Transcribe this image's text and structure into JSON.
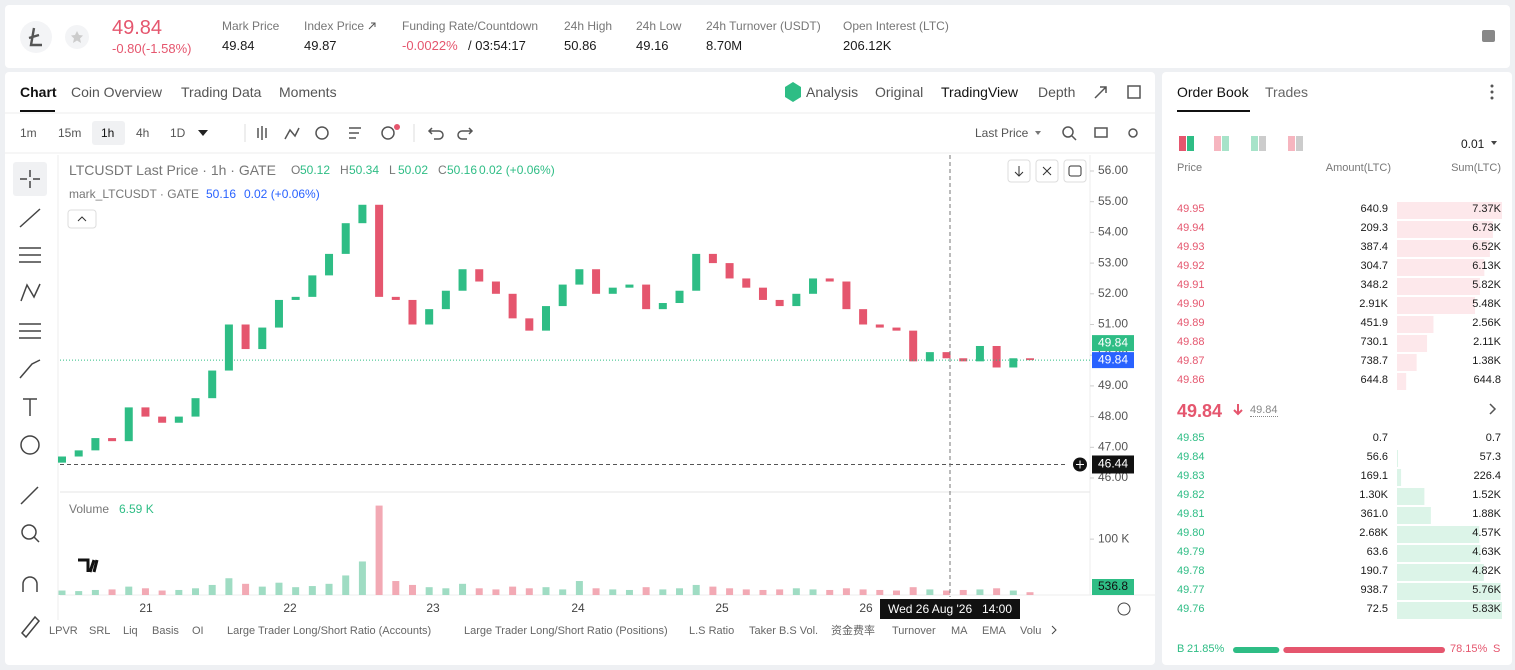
{
  "header": {
    "price": "49.84",
    "change": "-0.80(-1.58%)",
    "stats": [
      {
        "label": "Mark Price",
        "value": "49.84"
      },
      {
        "label": "Index Price",
        "value": "49.87"
      },
      {
        "label": "Funding Rate/Countdown",
        "value": "-0.0022%",
        "value2": "/ 03:54:17"
      },
      {
        "label": "24h High",
        "value": "50.86"
      },
      {
        "label": "24h Low",
        "value": "49.16"
      },
      {
        "label": "24h Turnover (USDT)",
        "value": "8.70M"
      },
      {
        "label": "Open Interest (LTC)",
        "value": "206.12K"
      }
    ]
  },
  "tabs": [
    "Chart",
    "Coin Overview",
    "Trading Data",
    "Moments"
  ],
  "view_tabs": [
    "Analysis",
    "Original",
    "TradingView",
    "Depth"
  ],
  "intervals": [
    "1m",
    "15m",
    "1h",
    "4h",
    "1D"
  ],
  "price_source": "Last Price",
  "chart": {
    "type": "candlestick",
    "legend": {
      "title": "LTCUSDT Last Price · 1h · GATE",
      "ohlc": [
        {
          "k": "O",
          "v": "50.12"
        },
        {
          "k": "H",
          "v": "50.34"
        },
        {
          "k": "L",
          "v": "50.02"
        },
        {
          "k": "C",
          "v": "50.16"
        }
      ],
      "change": "0.02 (+0.06%)",
      "mark_title": "mark_LTCUSDT · GATE",
      "mark_value": "50.16",
      "mark_change": "0.02 (+0.06%)"
    },
    "open": 46.5,
    "closes": [
      46.7,
      46.9,
      47.3,
      47.2,
      48.3,
      48.0,
      47.8,
      48.0,
      48.6,
      49.5,
      51.0,
      50.2,
      50.9,
      51.8,
      51.9,
      52.6,
      53.3,
      54.3,
      54.9,
      51.9,
      51.8,
      51.0,
      51.5,
      52.1,
      52.8,
      52.4,
      52.0,
      51.2,
      50.8,
      51.6,
      52.3,
      52.8,
      52.0,
      52.2,
      52.3,
      51.5,
      51.7,
      52.1,
      53.3,
      53.0,
      52.5,
      52.2,
      51.8,
      51.6,
      52.0,
      52.5,
      52.4,
      51.5,
      51.0,
      50.9,
      50.8,
      49.8,
      50.1,
      49.9,
      49.8,
      50.3,
      49.6,
      49.9,
      49.84
    ],
    "volumes": [
      8,
      7,
      9,
      10,
      15,
      12,
      8,
      9,
      12,
      18,
      30,
      20,
      15,
      22,
      14,
      16,
      20,
      35,
      60,
      160,
      25,
      18,
      14,
      12,
      20,
      12,
      10,
      15,
      12,
      14,
      10,
      25,
      12,
      10,
      9,
      14,
      10,
      12,
      18,
      15,
      12,
      10,
      9,
      10,
      12,
      10,
      9,
      12,
      10,
      9,
      8,
      14,
      10,
      8,
      9,
      10,
      12,
      8,
      5
    ],
    "ylim": [
      46,
      56
    ],
    "yticks": [
      {
        "value": 46,
        "label": "46.00"
      },
      {
        "value": 47,
        "label": "47.00"
      },
      {
        "value": 48,
        "label": "48.00"
      },
      {
        "value": 49,
        "label": "49.00"
      },
      {
        "value": 50,
        "label": "50.00"
      },
      {
        "value": 51,
        "label": "51.00"
      },
      {
        "value": 52,
        "label": "52.00"
      },
      {
        "value": 53,
        "label": "53.00"
      },
      {
        "value": 54,
        "label": "54.00"
      },
      {
        "value": 55,
        "label": "55.00"
      },
      {
        "value": 56,
        "label": "56.00"
      }
    ],
    "vol_ylim": [
      0,
      170
    ],
    "vol_yticks": [
      {
        "value": 100,
        "label": "100 K"
      }
    ],
    "x_labels": [
      "21",
      "22",
      "23",
      "24",
      "25",
      "26"
    ],
    "last_price_tag": "49.84",
    "mark_price_tag": "49.84",
    "crosshair_price": 46.44,
    "crosshair_date": "Wed 26 Aug '26",
    "crosshair_time": "14:00",
    "volume_title": "Volume",
    "volume_value": "6.59 K",
    "volume_tag": "536.8"
  },
  "indicators": [
    "LPVR",
    "SRL",
    "Liq",
    "Basis",
    "OI",
    "Large Trader Long/Short Ratio (Accounts)",
    "Large Trader Long/Short Ratio (Positions)",
    "L.S Ratio",
    "Taker B.S Vol.",
    "资金费率",
    "Turnover",
    "MA",
    "EMA",
    "Volu"
  ],
  "order_book": {
    "tabs": [
      "Order Book",
      "Trades"
    ],
    "precision": "0.01",
    "columns": [
      "Price",
      "Amount(LTC)",
      "Sum(LTC)"
    ],
    "asks": [
      {
        "price": "49.95",
        "amount": "640.9",
        "sum": {
          "value": 7370,
          "label": "7.37K"
        }
      },
      {
        "price": "49.94",
        "amount": "209.3",
        "sum": {
          "value": 6730,
          "label": "6.73K"
        }
      },
      {
        "price": "49.93",
        "amount": "387.4",
        "sum": {
          "value": 6520,
          "label": "6.52K"
        }
      },
      {
        "price": "49.92",
        "amount": "304.7",
        "sum": {
          "value": 6130,
          "label": "6.13K"
        }
      },
      {
        "price": "49.91",
        "amount": "348.2",
        "sum": {
          "value": 5820,
          "label": "5.82K"
        }
      },
      {
        "price": "49.90",
        "amount": "2.91K",
        "sum": {
          "value": 5480,
          "label": "5.48K"
        }
      },
      {
        "price": "49.89",
        "amount": "451.9",
        "sum": {
          "value": 2560,
          "label": "2.56K"
        }
      },
      {
        "price": "49.88",
        "amount": "730.1",
        "sum": {
          "value": 2110,
          "label": "2.11K"
        }
      },
      {
        "price": "49.87",
        "amount": "738.7",
        "sum": {
          "value": 1380,
          "label": "1.38K"
        }
      },
      {
        "price": "49.86",
        "amount": "644.8",
        "sum": 644.8
      }
    ],
    "mid_price": "49.84",
    "mid_mark": "49.84",
    "bids": [
      {
        "price": "49.85",
        "amount": "0.7",
        "sum": 0.7
      },
      {
        "price": "49.84",
        "amount": "56.6",
        "sum": 57.3
      },
      {
        "price": "49.83",
        "amount": "169.1",
        "sum": 226.4
      },
      {
        "price": "49.82",
        "amount": "1.30K",
        "sum": {
          "value": 1520,
          "label": "1.52K"
        }
      },
      {
        "price": "49.81",
        "amount": "361.0",
        "sum": {
          "value": 1880,
          "label": "1.88K"
        }
      },
      {
        "price": "49.80",
        "amount": "2.68K",
        "sum": {
          "value": 4570,
          "label": "4.57K"
        }
      },
      {
        "price": "49.79",
        "amount": "63.6",
        "sum": {
          "value": 4630,
          "label": "4.63K"
        }
      },
      {
        "price": "49.78",
        "amount": "190.7",
        "sum": {
          "value": 4820,
          "label": "4.82K"
        }
      },
      {
        "price": "49.77",
        "amount": "938.7",
        "sum": {
          "value": 5760,
          "label": "5.76K"
        }
      },
      {
        "price": "49.76",
        "amount": "72.5",
        "sum": {
          "value": 5830,
          "label": "5.83K"
        }
      }
    ],
    "buy_letter": "B",
    "sell_letter": "S",
    "buy_ratio": {
      "value": 21.85,
      "label": "21.85%"
    },
    "sell_ratio": {
      "value": 78.15,
      "label": "78.15%"
    }
  }
}
